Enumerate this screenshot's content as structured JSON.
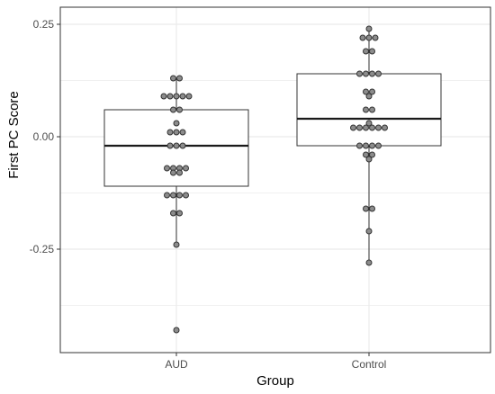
{
  "chart_data": {
    "type": "boxplot_with_dotplot",
    "xlabel": "Group",
    "ylabel": "First PC Score",
    "categories": [
      "AUD",
      "Control"
    ],
    "y_ticks": [
      0.25,
      0.0,
      -0.25
    ],
    "y_tick_labels": [
      "0.25",
      "0.00",
      "-0.25"
    ],
    "ylim": [
      -0.48,
      0.27
    ],
    "grid": true,
    "boxes": [
      {
        "group": "AUD",
        "q1": -0.11,
        "median": -0.02,
        "q3": 0.06,
        "whisker_low": -0.24,
        "whisker_high": 0.13
      },
      {
        "group": "Control",
        "q1": -0.02,
        "median": 0.04,
        "q3": 0.14,
        "whisker_low": -0.28,
        "whisker_high": 0.24
      }
    ],
    "points": [
      {
        "group": "AUD",
        "values": [
          0.13,
          0.13,
          0.09,
          0.09,
          0.09,
          0.09,
          0.09,
          0.06,
          0.06,
          0.03,
          0.01,
          0.01,
          0.01,
          -0.02,
          -0.02,
          -0.02,
          -0.07,
          -0.07,
          -0.07,
          -0.07,
          -0.08,
          -0.08,
          -0.13,
          -0.13,
          -0.13,
          -0.13,
          -0.17,
          -0.17,
          -0.24,
          -0.43
        ]
      },
      {
        "group": "Control",
        "values": [
          0.24,
          0.22,
          0.22,
          0.22,
          0.19,
          0.19,
          0.14,
          0.14,
          0.14,
          0.14,
          0.1,
          0.1,
          0.09,
          0.06,
          0.06,
          0.03,
          0.02,
          0.02,
          0.02,
          0.02,
          0.02,
          0.02,
          -0.02,
          -0.02,
          -0.02,
          -0.02,
          -0.04,
          -0.04,
          -0.05,
          -0.16,
          -0.16,
          -0.21,
          -0.28
        ]
      }
    ],
    "colors": {
      "box_stroke": "#333333",
      "median": "#1a1a1a",
      "point_fill": "#8c8c8c",
      "point_stroke": "#333333",
      "grid": "#ebebeb",
      "panel_border": "#333333"
    }
  }
}
